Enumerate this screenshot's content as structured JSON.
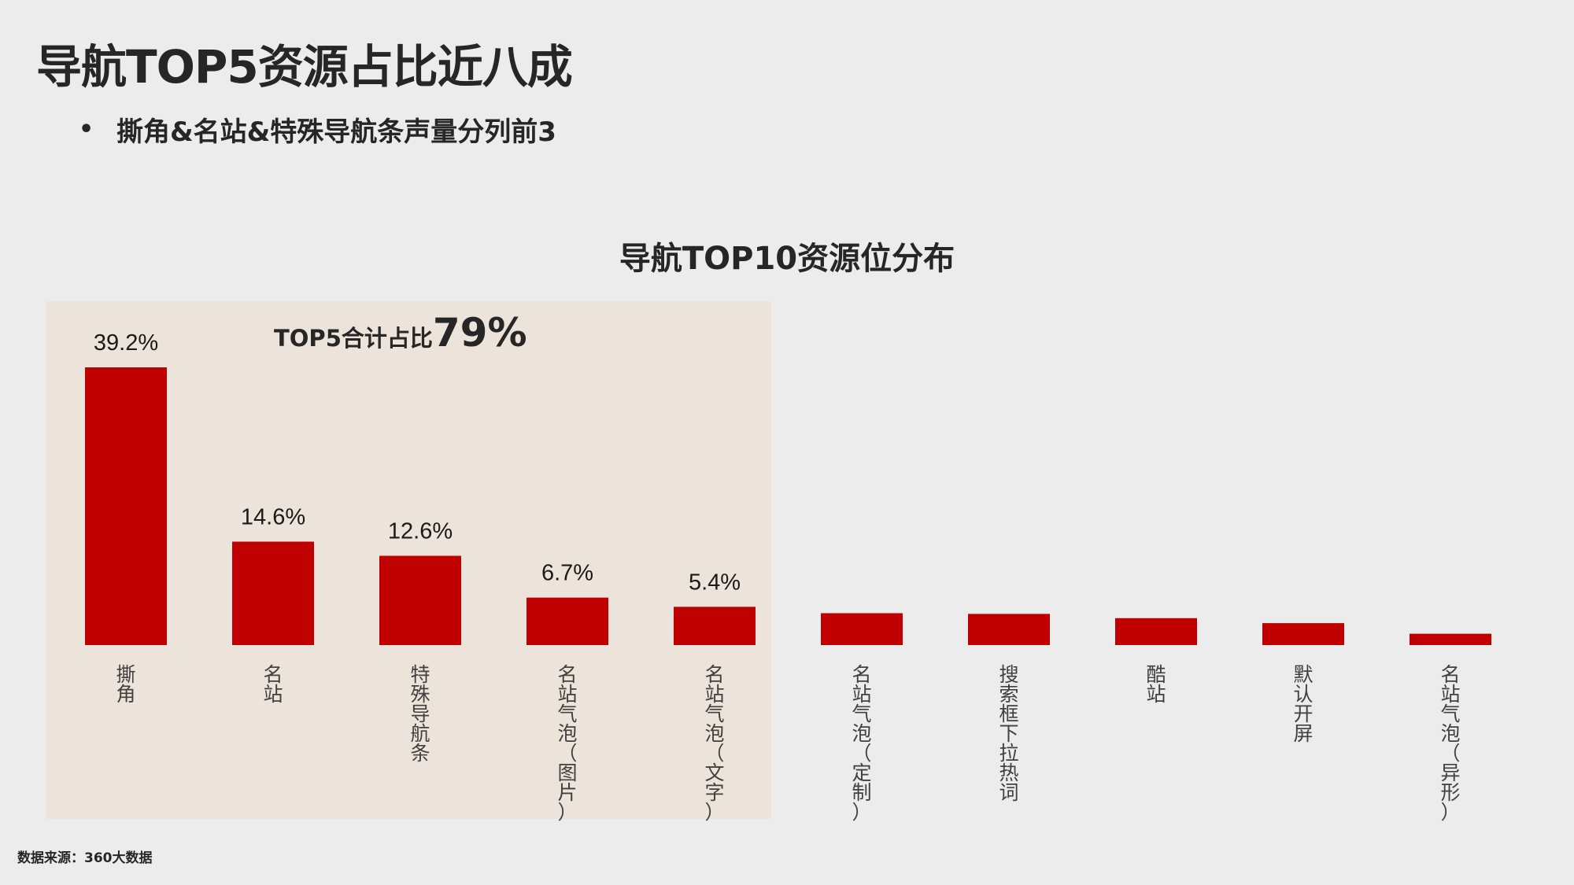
{
  "title": "导航TOP5资源占比近八成",
  "bullet": "撕角&名站&特殊导航条声量分列前3",
  "source": "数据来源：360大数据",
  "colors": {
    "bar": "#c00000",
    "highlight_bg": "#ece3da",
    "background": "#ececec"
  },
  "chart_data": {
    "type": "bar",
    "title": "导航TOP10资源位分布",
    "categories": [
      "撕角",
      "名站",
      "特殊导航条",
      "名站气泡（图片）",
      "名站气泡（文字）",
      "名站气泡（定制）",
      "搜索框下拉热词",
      "酷站",
      "默认开屏",
      "名站气泡（异形）"
    ],
    "values": [
      39.2,
      14.6,
      12.6,
      6.7,
      5.4,
      4.5,
      4.4,
      3.8,
      3.1,
      1.6
    ],
    "data_labels": [
      "39.2%",
      "14.6%",
      "12.6%",
      "6.7%",
      "5.4%",
      "",
      "",
      "",
      "",
      ""
    ],
    "highlight": {
      "count": 5,
      "label_prefix": "TOP5合计占比",
      "label_value": "79%"
    },
    "xlabel": "",
    "ylabel": "",
    "ylim": [
      0,
      39.2
    ],
    "grid": false
  }
}
